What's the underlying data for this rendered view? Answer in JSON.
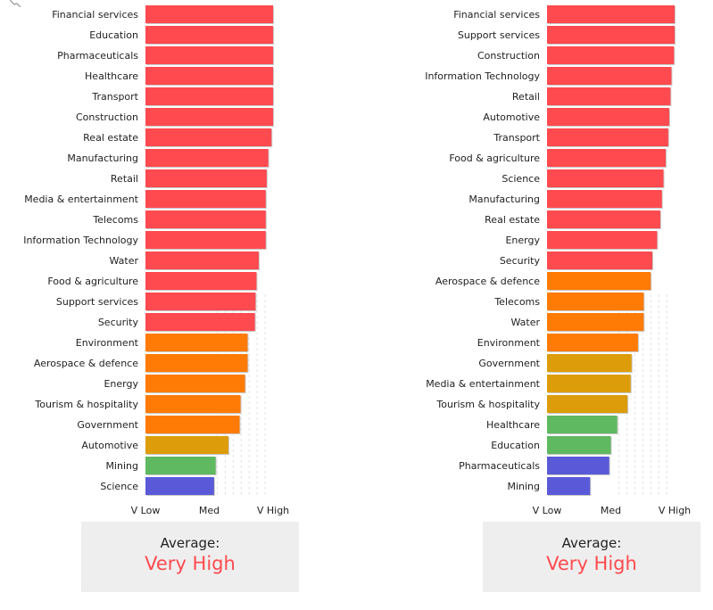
{
  "chart_data": [
    {
      "type": "bar",
      "orientation": "horizontal",
      "categories": [
        "Financial services",
        "Education",
        "Pharmaceuticals",
        "Healthcare",
        "Transport",
        "Construction",
        "Real estate",
        "Manufacturing",
        "Retail",
        "Media & entertainment",
        "Telecoms",
        "Information Technology",
        "Water",
        "Food & agriculture",
        "Support services",
        "Security",
        "Environment",
        "Aerospace & defence",
        "Energy",
        "Tourism & hospitality",
        "Government",
        "Automotive",
        "Mining",
        "Science"
      ],
      "values": [
        4.0,
        4.0,
        4.0,
        4.0,
        4.0,
        4.0,
        3.95,
        3.85,
        3.8,
        3.77,
        3.77,
        3.77,
        3.55,
        3.48,
        3.45,
        3.43,
        3.2,
        3.2,
        3.12,
        2.98,
        2.95,
        2.6,
        2.2,
        2.15
      ],
      "colors": [
        "#ff4a4f",
        "#ff4a4f",
        "#ff4a4f",
        "#ff4a4f",
        "#ff4a4f",
        "#ff4a4f",
        "#ff4a4f",
        "#ff4a4f",
        "#ff4a4f",
        "#ff4a4f",
        "#ff4a4f",
        "#ff4a4f",
        "#ff4a4f",
        "#ff4a4f",
        "#ff4a4f",
        "#ff4a4f",
        "#ff7b06",
        "#ff7b06",
        "#ff7b06",
        "#ff7b06",
        "#ff7b06",
        "#dd9d0b",
        "#5fb960",
        "#5a5ad8"
      ],
      "xticks": [
        "V Low",
        "Med",
        "V High"
      ],
      "xtick_values": [
        0,
        2,
        4
      ],
      "xlim": [
        0,
        4
      ]
    },
    {
      "type": "bar",
      "orientation": "horizontal",
      "categories": [
        "Financial services",
        "Support services",
        "Construction",
        "Information Technology",
        "Retail",
        "Automotive",
        "Transport",
        "Food & agriculture",
        "Science",
        "Manufacturing",
        "Real estate",
        "Energy",
        "Security",
        "Aerospace & defence",
        "Telecoms",
        "Water",
        "Environment",
        "Government",
        "Media & entertainment",
        "Tourism & hospitality",
        "Healthcare",
        "Education",
        "Pharmaceuticals",
        "Mining"
      ],
      "values": [
        4.0,
        4.0,
        3.98,
        3.9,
        3.87,
        3.83,
        3.8,
        3.72,
        3.65,
        3.6,
        3.55,
        3.45,
        3.3,
        3.25,
        3.03,
        3.03,
        2.85,
        2.65,
        2.62,
        2.52,
        2.2,
        2.0,
        1.95,
        1.35
      ],
      "colors": [
        "#ff4a4f",
        "#ff4a4f",
        "#ff4a4f",
        "#ff4a4f",
        "#ff4a4f",
        "#ff4a4f",
        "#ff4a4f",
        "#ff4a4f",
        "#ff4a4f",
        "#ff4a4f",
        "#ff4a4f",
        "#ff4a4f",
        "#ff4a4f",
        "#ff7b06",
        "#ff7b06",
        "#ff7b06",
        "#ff7b06",
        "#dd9d0b",
        "#dd9d0b",
        "#dd9d0b",
        "#5fb960",
        "#5fb960",
        "#5a5ad8",
        "#5a5ad8"
      ],
      "xticks": [
        "V Low",
        "Med",
        "V High"
      ],
      "xtick_values": [
        0,
        2,
        4
      ],
      "xlim": [
        0,
        4
      ]
    }
  ],
  "summaries": [
    {
      "label": "Average:",
      "value": "Very High",
      "value_color": "#ff4a4f"
    },
    {
      "label": "Average:",
      "value": "Very High",
      "value_color": "#ff4a4f"
    }
  ]
}
